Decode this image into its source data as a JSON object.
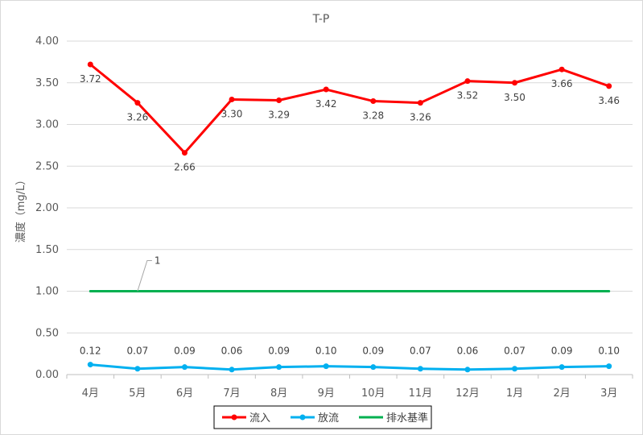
{
  "chart_data": {
    "type": "line",
    "title": "T-P",
    "xlabel": "",
    "ylabel": "濃度（mg/L）",
    "categories": [
      "4月",
      "5月",
      "6月",
      "7月",
      "8月",
      "9月",
      "10月",
      "11月",
      "12月",
      "1月",
      "2月",
      "3月"
    ],
    "ylim": [
      0,
      4
    ],
    "yticks": [
      "0.00",
      "0.50",
      "1.00",
      "1.50",
      "2.00",
      "2.50",
      "3.00",
      "3.50",
      "4.00"
    ],
    "grid": "horizontal",
    "legend_position": "bottom",
    "series": [
      {
        "name": "流入",
        "color": "#ff0000",
        "values": [
          3.72,
          3.26,
          2.66,
          3.3,
          3.29,
          3.42,
          3.28,
          3.26,
          3.52,
          3.5,
          3.66,
          3.46
        ],
        "labels": [
          "3.72",
          "3.26",
          "2.66",
          "3.30",
          "3.29",
          "3.42",
          "3.28",
          "3.26",
          "3.52",
          "3.50",
          "3.66",
          "3.46"
        ],
        "markers": true
      },
      {
        "name": "放流",
        "color": "#00b0f0",
        "values": [
          0.12,
          0.07,
          0.09,
          0.06,
          0.09,
          0.1,
          0.09,
          0.07,
          0.06,
          0.07,
          0.09,
          0.1
        ],
        "labels": [
          "0.12",
          "0.07",
          "0.09",
          "0.06",
          "0.09",
          "0.10",
          "0.09",
          "0.07",
          "0.06",
          "0.07",
          "0.09",
          "0.10"
        ],
        "markers": true
      },
      {
        "name": "排水基準",
        "color": "#00b050",
        "values": [
          1,
          1,
          1,
          1,
          1,
          1,
          1,
          1,
          1,
          1,
          1,
          1
        ],
        "markers": false
      }
    ],
    "annotations": [
      {
        "series": "排水基準",
        "category": "5月",
        "text": "1"
      }
    ]
  }
}
